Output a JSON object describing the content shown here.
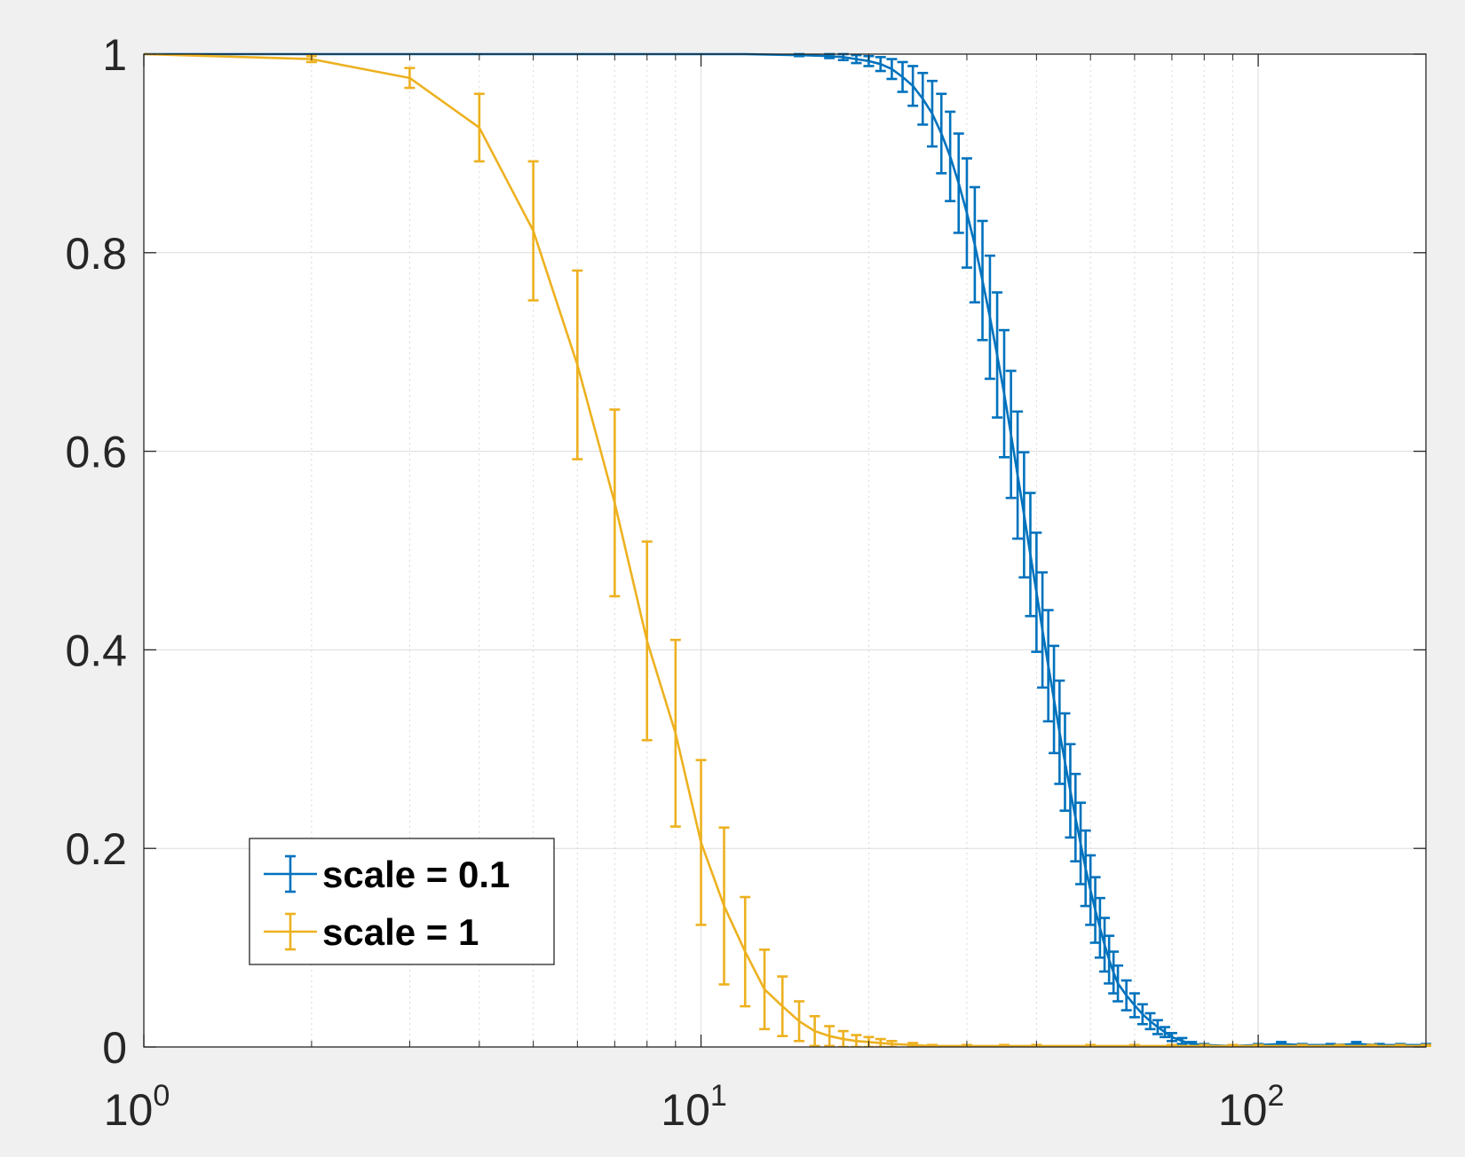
{
  "chart_data": {
    "type": "line",
    "title": "",
    "xlabel": "",
    "ylabel": "",
    "xscale": "log",
    "xlim": [
      1,
      200
    ],
    "ylim": [
      0,
      1
    ],
    "grid": true,
    "minor_grid_x": true,
    "legend_position": "bottom-left",
    "error_bars": true,
    "x_tick_labels": [
      {
        "base": "10",
        "exp": "0"
      },
      {
        "base": "10",
        "exp": "1"
      },
      {
        "base": "10",
        "exp": "2"
      }
    ],
    "y_tick_labels": [
      "0",
      "0.2",
      "0.4",
      "0.6",
      "0.8",
      "1"
    ],
    "series": [
      {
        "name": "scale = 0.1",
        "color": "#0072BD",
        "points": [
          [
            1,
            1,
            0
          ],
          [
            2,
            1,
            0
          ],
          [
            3,
            1,
            0
          ],
          [
            5,
            1,
            0
          ],
          [
            8,
            1,
            0
          ],
          [
            12,
            1,
            0
          ],
          [
            15,
            0.999,
            0.001
          ],
          [
            17,
            0.998,
            0.002
          ],
          [
            18,
            0.997,
            0.003
          ],
          [
            19,
            0.995,
            0.004
          ],
          [
            20,
            0.993,
            0.005
          ],
          [
            21,
            0.99,
            0.007
          ],
          [
            22,
            0.985,
            0.01
          ],
          [
            23,
            0.977,
            0.015
          ],
          [
            24,
            0.968,
            0.02
          ],
          [
            25,
            0.955,
            0.026
          ],
          [
            26,
            0.94,
            0.033
          ],
          [
            27,
            0.92,
            0.04
          ],
          [
            28,
            0.897,
            0.045
          ],
          [
            29,
            0.87,
            0.05
          ],
          [
            30,
            0.84,
            0.055
          ],
          [
            31,
            0.808,
            0.058
          ],
          [
            32,
            0.772,
            0.06
          ],
          [
            33,
            0.735,
            0.062
          ],
          [
            34,
            0.697,
            0.063
          ],
          [
            35,
            0.658,
            0.064
          ],
          [
            36,
            0.617,
            0.064
          ],
          [
            37,
            0.576,
            0.064
          ],
          [
            38,
            0.536,
            0.063
          ],
          [
            39,
            0.496,
            0.062
          ],
          [
            40,
            0.458,
            0.06
          ],
          [
            41,
            0.42,
            0.058
          ],
          [
            42,
            0.384,
            0.056
          ],
          [
            43,
            0.35,
            0.054
          ],
          [
            44,
            0.317,
            0.052
          ],
          [
            45,
            0.287,
            0.049
          ],
          [
            46,
            0.258,
            0.047
          ],
          [
            47,
            0.231,
            0.044
          ],
          [
            48,
            0.205,
            0.041
          ],
          [
            49,
            0.18,
            0.038
          ],
          [
            50,
            0.158,
            0.035
          ],
          [
            51,
            0.138,
            0.033
          ],
          [
            52,
            0.12,
            0.03
          ],
          [
            53,
            0.103,
            0.027
          ],
          [
            54,
            0.088,
            0.024
          ],
          [
            55,
            0.075,
            0.021
          ],
          [
            56,
            0.064,
            0.018
          ],
          [
            58,
            0.052,
            0.015
          ],
          [
            60,
            0.042,
            0.012
          ],
          [
            62,
            0.033,
            0.01
          ],
          [
            64,
            0.026,
            0.008
          ],
          [
            66,
            0.02,
            0.007
          ],
          [
            68,
            0.015,
            0.005
          ],
          [
            70,
            0.01,
            0.004
          ],
          [
            73,
            0.006,
            0.003
          ],
          [
            76,
            0.003,
            0.002
          ],
          [
            80,
            0.002,
            0.001
          ],
          [
            90,
            0.001,
            0.001
          ],
          [
            100,
            0.002,
            0.001
          ],
          [
            110,
            0.003,
            0.002
          ],
          [
            120,
            0.002,
            0.001
          ],
          [
            135,
            0.002,
            0.001
          ],
          [
            150,
            0.003,
            0.002
          ],
          [
            165,
            0.002,
            0.001
          ],
          [
            180,
            0.002,
            0.001
          ],
          [
            200,
            0.002,
            0.001
          ]
        ]
      },
      {
        "name": "scale = 1",
        "color": "#EDB120",
        "points": [
          [
            1,
            1,
            0
          ],
          [
            2,
            0.995,
            0.003
          ],
          [
            3,
            0.976,
            0.01
          ],
          [
            4,
            0.926,
            0.034
          ],
          [
            5,
            0.822,
            0.07
          ],
          [
            6,
            0.687,
            0.095
          ],
          [
            7,
            0.548,
            0.094
          ],
          [
            8,
            0.409,
            0.1
          ],
          [
            9,
            0.316,
            0.094
          ],
          [
            10,
            0.206,
            0.083
          ],
          [
            11,
            0.142,
            0.079
          ],
          [
            12,
            0.096,
            0.055
          ],
          [
            13,
            0.058,
            0.04
          ],
          [
            14,
            0.041,
            0.03
          ],
          [
            15,
            0.026,
            0.02
          ],
          [
            16,
            0.016,
            0.015
          ],
          [
            17,
            0.011,
            0.01
          ],
          [
            18,
            0.008,
            0.008
          ],
          [
            19,
            0.006,
            0.006
          ],
          [
            20,
            0.005,
            0.005
          ],
          [
            21,
            0.004,
            0.004
          ],
          [
            22,
            0.003,
            0.003
          ],
          [
            24,
            0.002,
            0.002
          ],
          [
            26,
            0.001,
            0.001
          ],
          [
            30,
            0.001,
            0.001
          ],
          [
            35,
            0.001,
            0.001
          ],
          [
            40,
            0.001,
            0.001
          ],
          [
            50,
            0.001,
            0.001
          ],
          [
            60,
            0.001,
            0.001
          ],
          [
            70,
            0.001,
            0.001
          ],
          [
            80,
            0.001,
            0.001
          ],
          [
            90,
            0.001,
            0.001
          ],
          [
            100,
            0.001,
            0.001
          ],
          [
            120,
            0.001,
            0.001
          ],
          [
            140,
            0.001,
            0.001
          ],
          [
            160,
            0.001,
            0.001
          ],
          [
            180,
            0.001,
            0.001
          ],
          [
            200,
            0.001,
            0.001
          ]
        ]
      }
    ]
  }
}
